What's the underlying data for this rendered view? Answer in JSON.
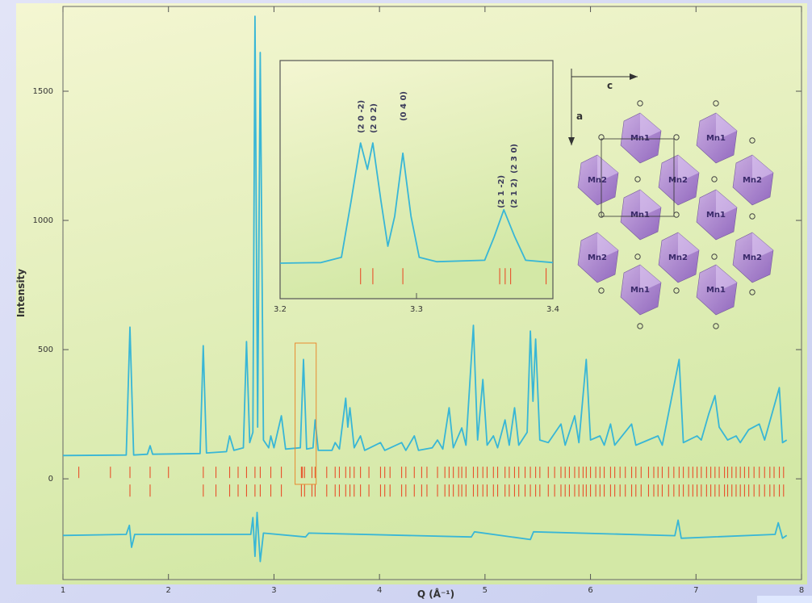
{
  "chart_data": [
    {
      "type": "line",
      "x_label": "Q (Å⁻¹)",
      "y_label": "Intensity",
      "xlim": [
        1,
        8
      ],
      "xticks": [
        1,
        2,
        3,
        4,
        5,
        6,
        7,
        8
      ],
      "ylim": [
        -390,
        1828
      ],
      "yticks": [
        0,
        500,
        1000,
        1500
      ],
      "series": [
        {
          "color": "#38b6d6",
          "x": [
            1.0,
            1.6,
            1.635,
            1.67,
            1.8,
            1.826,
            1.85,
            2.3,
            2.33,
            2.36,
            2.55,
            2.58,
            2.62,
            2.71,
            2.74,
            2.77,
            2.8,
            2.82,
            2.845,
            2.87,
            2.9,
            2.95,
            2.97,
            3.0,
            3.07,
            3.11,
            3.25,
            3.28,
            3.31,
            3.37,
            3.39,
            3.42,
            3.55,
            3.58,
            3.62,
            3.68,
            3.7,
            3.72,
            3.76,
            3.82,
            3.86,
            4.01,
            4.05,
            4.21,
            4.25,
            4.33,
            4.37,
            4.5,
            4.55,
            4.6,
            4.66,
            4.7,
            4.78,
            4.82,
            4.89,
            4.93,
            4.98,
            5.02,
            5.08,
            5.12,
            5.19,
            5.23,
            5.28,
            5.32,
            5.4,
            5.43,
            5.455,
            5.48,
            5.52,
            5.6,
            5.72,
            5.76,
            5.85,
            5.89,
            5.96,
            6.0,
            6.09,
            6.13,
            6.19,
            6.23,
            6.39,
            6.43,
            6.64,
            6.68,
            6.84,
            6.88,
            7.01,
            7.05,
            7.12,
            7.18,
            7.22,
            7.3,
            7.38,
            7.42,
            7.5,
            7.6,
            7.65,
            7.79,
            7.82,
            7.86
          ],
          "values": [
            90,
            92,
            587,
            92,
            95,
            128,
            95,
            98,
            515,
            100,
            105,
            166,
            110,
            120,
            531,
            140,
            180,
            1790,
            200,
            1650,
            150,
            120,
            166,
            120,
            244,
            115,
            120,
            462,
            115,
            120,
            228,
            110,
            110,
            140,
            115,
            312,
            200,
            275,
            120,
            166,
            110,
            140,
            110,
            140,
            110,
            166,
            110,
            120,
            150,
            115,
            275,
            120,
            197,
            130,
            594,
            150,
            384,
            130,
            166,
            120,
            228,
            130,
            275,
            130,
            180,
            572,
            300,
            541,
            150,
            140,
            212,
            130,
            244,
            140,
            462,
            150,
            166,
            130,
            212,
            130,
            212,
            130,
            166,
            130,
            462,
            140,
            166,
            150,
            250,
            322,
            200,
            150,
            166,
            140,
            190,
            212,
            150,
            353,
            140,
            150
          ]
        },
        {
          "color": "#38b6d6",
          "x": [
            1.0,
            1.6,
            1.63,
            1.65,
            1.68,
            2.78,
            2.8,
            2.82,
            2.84,
            2.87,
            2.9,
            3.3,
            3.33,
            4.87,
            4.9,
            5.43,
            5.46,
            6.8,
            6.83,
            6.86,
            7.75,
            7.78,
            7.82,
            7.86
          ],
          "values": [
            -219,
            -215,
            -180,
            -265,
            -215,
            -215,
            -150,
            -300,
            -130,
            -320,
            -210,
            -225,
            -210,
            -225,
            -205,
            -235,
            -205,
            -220,
            -160,
            -230,
            -215,
            -170,
            -230,
            -219
          ]
        }
      ],
      "reflections": [
        {
          "color": "#e8502a",
          "y": [
            3,
            47
          ],
          "positions": [
            1.15,
            1.45,
            1.635,
            1.826,
            2.0,
            2.33,
            2.45,
            2.58,
            2.66,
            2.74,
            2.82,
            2.87,
            2.97,
            3.07,
            3.26,
            3.27,
            3.29,
            3.36,
            3.39,
            3.5,
            3.58,
            3.62,
            3.68,
            3.72,
            3.76,
            3.82,
            3.9,
            4.01,
            4.05,
            4.1,
            4.21,
            4.25,
            4.33,
            4.4,
            4.45,
            4.55,
            4.62,
            4.66,
            4.7,
            4.75,
            4.78,
            4.82,
            4.89,
            4.93,
            4.98,
            5.02,
            5.08,
            5.12,
            5.19,
            5.23,
            5.28,
            5.32,
            5.38,
            5.43,
            5.48,
            5.52,
            5.6,
            5.66,
            5.72,
            5.76,
            5.8,
            5.85,
            5.89,
            5.93,
            5.96,
            6.0,
            6.05,
            6.09,
            6.13,
            6.19,
            6.23,
            6.28,
            6.33,
            6.39,
            6.43,
            6.48,
            6.55,
            6.6,
            6.64,
            6.68,
            6.74,
            6.79,
            6.84,
            6.88,
            6.93,
            6.97,
            7.01,
            7.05,
            7.1,
            7.14,
            7.18,
            7.22,
            7.27,
            7.3,
            7.34,
            7.38,
            7.42,
            7.46,
            7.5,
            7.55,
            7.6,
            7.65,
            7.7,
            7.74,
            7.79,
            7.83
          ]
        },
        {
          "color": "#e8502a",
          "y": [
            -69,
            -22
          ],
          "positions": [
            1.635,
            1.826,
            2.33,
            2.45,
            2.58,
            2.66,
            2.74,
            2.82,
            2.87,
            2.97,
            3.07,
            3.26,
            3.29,
            3.36,
            3.39,
            3.5,
            3.58,
            3.62,
            3.68,
            3.72,
            3.76,
            3.82,
            3.9,
            4.01,
            4.05,
            4.1,
            4.21,
            4.25,
            4.33,
            4.4,
            4.45,
            4.55,
            4.62,
            4.66,
            4.7,
            4.75,
            4.78,
            4.82,
            4.89,
            4.93,
            4.98,
            5.02,
            5.08,
            5.12,
            5.19,
            5.23,
            5.28,
            5.32,
            5.38,
            5.43,
            5.48,
            5.52,
            5.6,
            5.66,
            5.72,
            5.76,
            5.8,
            5.85,
            5.89,
            5.93,
            5.96,
            6.0,
            6.05,
            6.09,
            6.13,
            6.19,
            6.23,
            6.28,
            6.33,
            6.39,
            6.43,
            6.48,
            6.55,
            6.6,
            6.64,
            6.68,
            6.74,
            6.79,
            6.84,
            6.88,
            6.93,
            6.97,
            7.01,
            7.05,
            7.1,
            7.14,
            7.18,
            7.22,
            7.27,
            7.3,
            7.34,
            7.38,
            7.42,
            7.46,
            7.5,
            7.55,
            7.6,
            7.65,
            7.7,
            7.74,
            7.79,
            7.83
          ]
        }
      ]
    },
    {
      "type": "line",
      "xlim": [
        3.2,
        3.4
      ],
      "xticks": [
        3.2,
        3.3,
        3.4
      ],
      "ylim": [
        -31,
        781
      ],
      "series": [
        {
          "color": "#38b6d6",
          "x": [
            3.2,
            3.23,
            3.245,
            3.252,
            3.259,
            3.264,
            3.268,
            3.274,
            3.279,
            3.284,
            3.29,
            3.296,
            3.302,
            3.315,
            3.35,
            3.357,
            3.364,
            3.372,
            3.38,
            3.4
          ],
          "values": [
            90,
            92,
            110,
            300,
            500,
            410,
            500,
            300,
            148,
            250,
            465,
            250,
            110,
            95,
            100,
            180,
            272,
            180,
            100,
            92
          ]
        }
      ],
      "reflections": [
        {
          "color": "#e8502a",
          "y": [
            18,
            73
          ],
          "positions": [
            3.259,
            3.268,
            3.29,
            3.361,
            3.365,
            3.369,
            3.395
          ]
        }
      ],
      "annotations": [
        {
          "text": "(2 0 -2)",
          "x": 3.259
        },
        {
          "text": "(2 0 2)",
          "x": 3.268
        },
        {
          "text": "(0 4 0)",
          "x": 3.29
        },
        {
          "text": "(2 1 -2)",
          "x": 3.3615
        },
        {
          "text": "(2 1 2)",
          "x": 3.371
        },
        {
          "text": "(2 3 0)",
          "x": 3.371
        }
      ]
    }
  ],
  "structure": {
    "axes": [
      "c",
      "a"
    ],
    "labels": [
      "Mn1",
      "Mn1",
      "Mn2",
      "Mn2",
      "Mn2",
      "Mn1",
      "Mn1",
      "Mn2",
      "Mn2",
      "Mn2",
      "Mn1",
      "Mn1"
    ]
  }
}
